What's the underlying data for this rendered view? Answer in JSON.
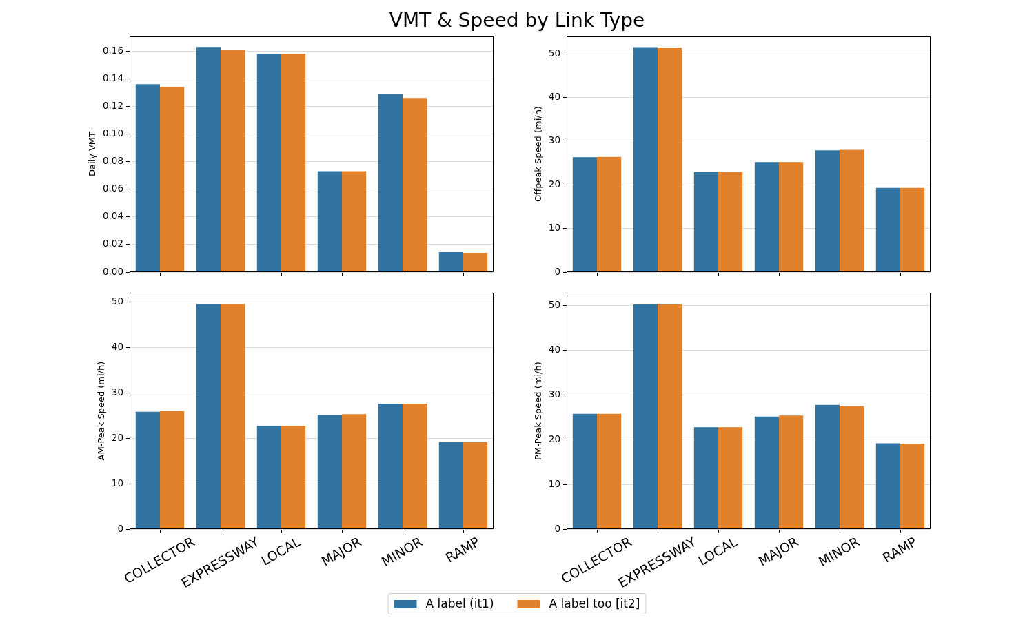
{
  "chart_data": [
    {
      "type": "bar",
      "title": "VMT & Speed by Link Type",
      "ylabel": "Daily VMT",
      "categories": [
        null,
        null,
        null,
        null,
        null,
        null
      ],
      "series": [
        {
          "name": "A label (it1)",
          "color": "#3274a1",
          "values": [
            0.136,
            0.163,
            0.158,
            0.073,
            0.129,
            0.0145
          ]
        },
        {
          "name": "A label too [it2]",
          "color": "#e1812c",
          "values": [
            0.134,
            0.161,
            0.158,
            0.073,
            0.126,
            0.014
          ]
        }
      ],
      "ylim": [
        0,
        0.171
      ],
      "yticks": [
        {
          "value": 0,
          "label": "0.00"
        },
        0.02,
        0.04,
        0.06,
        0.08,
        {
          "value": 0.1,
          "label": "0.10"
        },
        0.12,
        0.14,
        0.16
      ],
      "grid": "y",
      "legend": "bottom",
      "tick_labels": "y"
    },
    {
      "type": "bar",
      "ylabel": "Offpeak Speed (mi/h)",
      "categories": [
        null,
        null,
        null,
        null,
        null,
        null
      ],
      "series": [
        {
          "color": "#3274a1",
          "values": [
            26.3,
            51.5,
            22.9,
            25.2,
            27.9,
            19.3
          ]
        },
        {
          "color": "#e1812c",
          "values": [
            26.4,
            51.4,
            22.9,
            25.2,
            28.0,
            19.3
          ]
        }
      ],
      "ylim": [
        0,
        54.1
      ],
      "yticks": [
        0,
        10,
        20,
        30,
        40,
        50
      ],
      "grid": "y",
      "tick_labels": "y"
    },
    {
      "type": "bar",
      "ylabel": "AM-Peak Speed (mi/h)",
      "categories": [
        "COLLECTOR",
        "EXPRESSWAY",
        "LOCAL",
        "MAJOR",
        "MINOR",
        "RAMP"
      ],
      "series": [
        {
          "color": "#3274a1",
          "values": [
            25.8,
            49.5,
            22.7,
            25.1,
            27.6,
            19.1
          ]
        },
        {
          "color": "#e1812c",
          "values": [
            26.0,
            49.5,
            22.7,
            25.3,
            27.6,
            19.1
          ]
        }
      ],
      "ylim": [
        0,
        52
      ],
      "yticks": [
        0,
        10,
        20,
        30,
        40,
        50
      ],
      "grid": "y"
    },
    {
      "type": "bar",
      "ylabel": "PM-Peak Speed (mi/h)",
      "categories": [
        "COLLECTOR",
        "EXPRESSWAY",
        "LOCAL",
        "MAJOR",
        "MINOR",
        "RAMP"
      ],
      "series": [
        {
          "color": "#3274a1",
          "values": [
            25.8,
            50.3,
            22.8,
            25.2,
            27.8,
            19.2
          ]
        },
        {
          "color": "#e1812c",
          "values": [
            25.8,
            50.3,
            22.8,
            25.4,
            27.5,
            19.1
          ]
        }
      ],
      "ylim": [
        0,
        52.9
      ],
      "yticks": [
        0,
        10,
        20,
        30,
        40,
        50
      ],
      "grid": "y"
    }
  ]
}
